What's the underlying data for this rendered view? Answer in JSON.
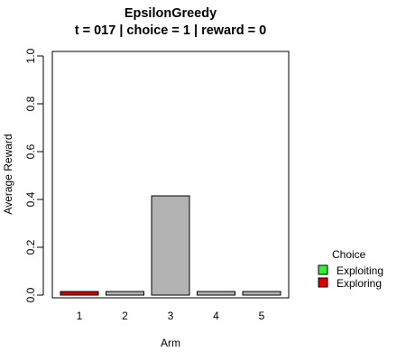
{
  "chart_data": {
    "type": "bar",
    "title": "EpsilonGreedy",
    "subtitle": "t = 017 | choice = 1 | reward = 0",
    "xlabel": "Arm",
    "ylabel": "Average Reward",
    "categories": [
      "1",
      "2",
      "3",
      "4",
      "5"
    ],
    "values": [
      0.015,
      0.015,
      0.415,
      0.015,
      0.015
    ],
    "bar_status": [
      "Exploring",
      "Exploiting",
      "Exploiting",
      "Exploiting",
      "Exploiting"
    ],
    "bar_colors": [
      "#dd0000",
      "#b3b3b3",
      "#b3b3b3",
      "#b3b3b3",
      "#b3b3b3"
    ],
    "ylim": [
      0,
      1
    ],
    "yticks": [
      "0.0",
      "0.2",
      "0.4",
      "0.6",
      "0.8",
      "1.0"
    ],
    "grid": false,
    "legend": {
      "title": "Choice",
      "placement": "right",
      "entries": [
        {
          "label": "Exploiting",
          "color": "#33ee33"
        },
        {
          "label": "Exploring",
          "color": "#dd0000"
        }
      ]
    }
  }
}
